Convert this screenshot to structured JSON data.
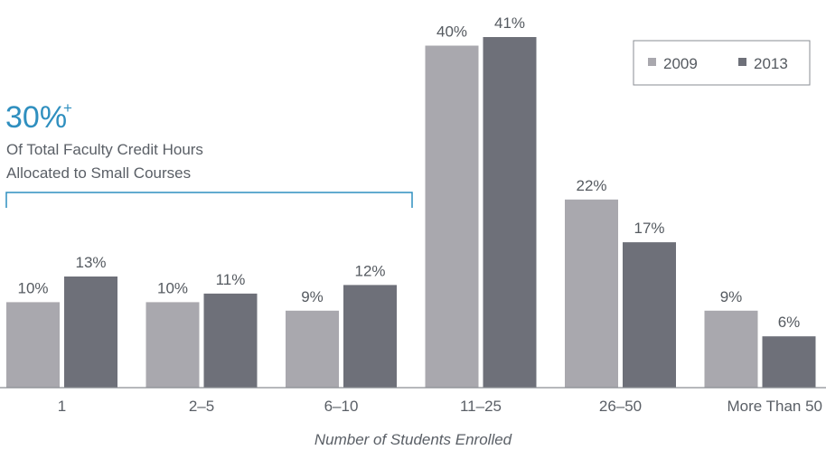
{
  "chart_data": {
    "type": "bar",
    "categories": [
      "1",
      "2–5",
      "6–10",
      "11–25",
      "26–50",
      "More Than 50"
    ],
    "series": [
      {
        "name": "2009",
        "values": [
          10,
          10,
          9,
          40,
          22,
          9
        ],
        "labels": [
          "10%",
          "10%",
          "9%",
          "40%",
          "22%",
          "9%"
        ]
      },
      {
        "name": "2013",
        "values": [
          13,
          11,
          12,
          41,
          17,
          6
        ],
        "labels": [
          "13%",
          "11%",
          "12%",
          "41%",
          "17%",
          "6%"
        ]
      }
    ],
    "xlabel": "Number of Students Enrolled",
    "ylabel": "",
    "ylim": [
      0,
      41
    ],
    "grid": false,
    "legend": "top-right",
    "colors": {
      "2009": "#a9a8ae",
      "2013": "#6e7079",
      "accent": "#2f8fbf",
      "text": "#555a60",
      "axis": "#8a8d93"
    },
    "callout": {
      "headline": "30%",
      "superscript": "+",
      "lines": [
        "Of Total Faculty Credit Hours",
        "Allocated to Small Courses"
      ],
      "bracket_covers": [
        "1",
        "2–5",
        "6–10"
      ]
    }
  }
}
